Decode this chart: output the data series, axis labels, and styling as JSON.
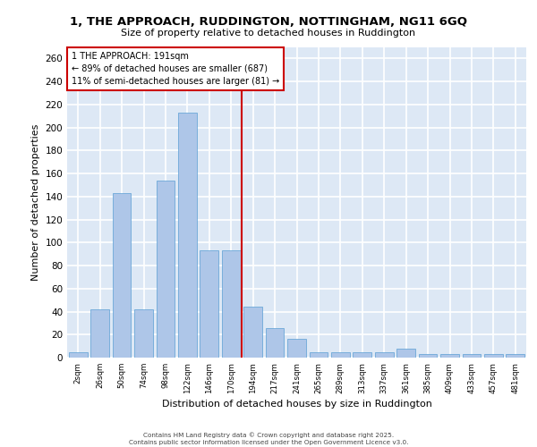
{
  "title_line1": "1, THE APPROACH, RUDDINGTON, NOTTINGHAM, NG11 6GQ",
  "title_line2": "Size of property relative to detached houses in Ruddington",
  "xlabel": "Distribution of detached houses by size in Ruddington",
  "ylabel": "Number of detached properties",
  "categories": [
    "2sqm",
    "26sqm",
    "50sqm",
    "74sqm",
    "98sqm",
    "122sqm",
    "146sqm",
    "170sqm",
    "194sqm",
    "217sqm",
    "241sqm",
    "265sqm",
    "289sqm",
    "313sqm",
    "337sqm",
    "361sqm",
    "385sqm",
    "409sqm",
    "433sqm",
    "457sqm",
    "481sqm"
  ],
  "values": [
    5,
    42,
    143,
    42,
    154,
    213,
    93,
    93,
    44,
    26,
    16,
    5,
    5,
    5,
    5,
    8,
    3,
    3,
    3,
    3,
    3
  ],
  "bar_color": "#aec6e8",
  "bar_edge_color": "#5a9fd4",
  "background_color": "#dde8f5",
  "grid_color": "#ffffff",
  "vline_color": "#cc0000",
  "annotation_text": "1 THE APPROACH: 191sqm\n← 89% of detached houses are smaller (687)\n11% of semi-detached houses are larger (81) →",
  "annotation_box_color": "#cc0000",
  "footer_text": "Contains HM Land Registry data © Crown copyright and database right 2025.\nContains public sector information licensed under the Open Government Licence v3.0.",
  "ylim": [
    0,
    270
  ],
  "yticks": [
    0,
    20,
    40,
    60,
    80,
    100,
    120,
    140,
    160,
    180,
    200,
    220,
    240,
    260
  ]
}
